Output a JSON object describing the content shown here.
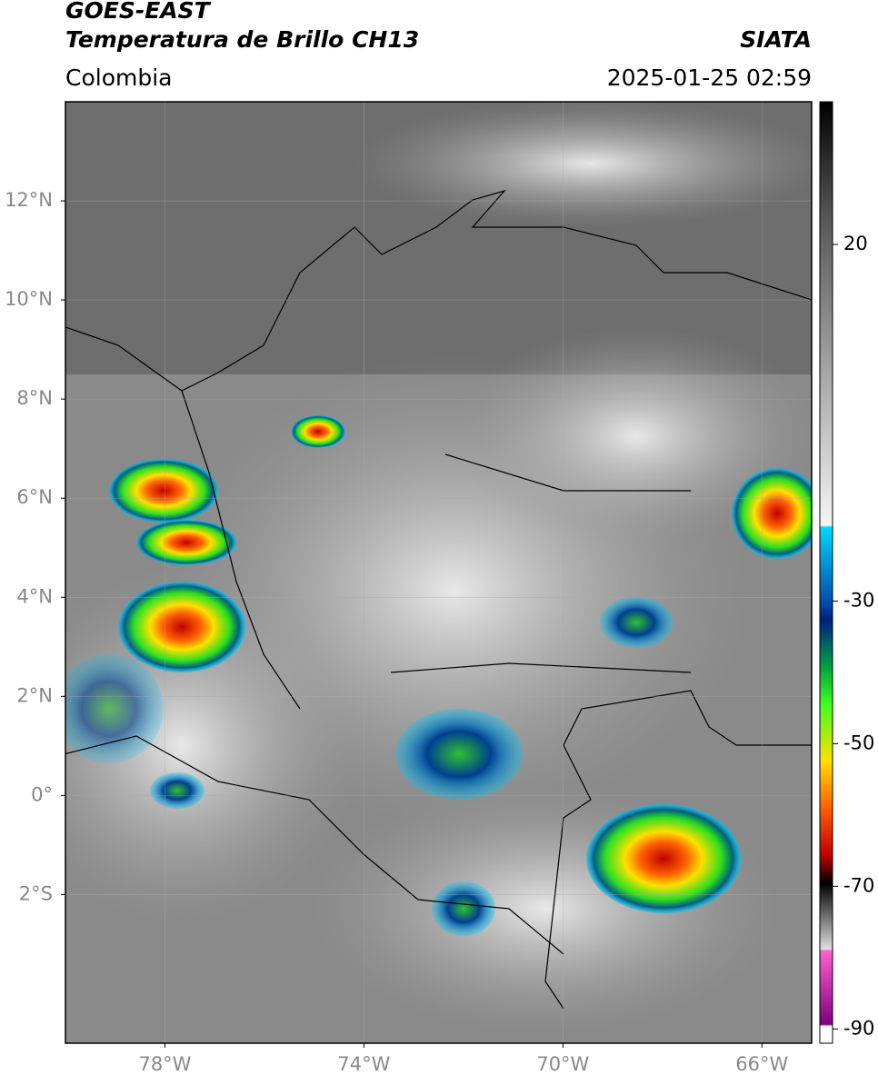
{
  "header": {
    "satellite": "GOES-EAST",
    "product": "Temperatura de Brillo CH13",
    "region": "Colombia",
    "source": "SIATA",
    "datetime": "2025-01-25 02:59"
  },
  "map": {
    "xlim": [
      -80,
      -65
    ],
    "ylim": [
      -5,
      14
    ],
    "xticks": [
      {
        "value": -78,
        "label": "78°W"
      },
      {
        "value": -74,
        "label": "74°W"
      },
      {
        "value": -70,
        "label": "70°W"
      },
      {
        "value": -66,
        "label": "66°W"
      }
    ],
    "yticks": [
      {
        "value": 12,
        "label": "12°N"
      },
      {
        "value": 10,
        "label": "10°N"
      },
      {
        "value": 8,
        "label": "8°N"
      },
      {
        "value": 6,
        "label": "6°N"
      },
      {
        "value": 4,
        "label": "4°N"
      },
      {
        "value": 2,
        "label": "2°N"
      },
      {
        "value": 0,
        "label": "0°"
      },
      {
        "value": -2,
        "label": "2°S"
      }
    ],
    "grid": true
  },
  "colorbar": {
    "lim": [
      -92,
      40
    ],
    "ticks": [
      20,
      -30,
      -50,
      -70,
      -90
    ]
  }
}
